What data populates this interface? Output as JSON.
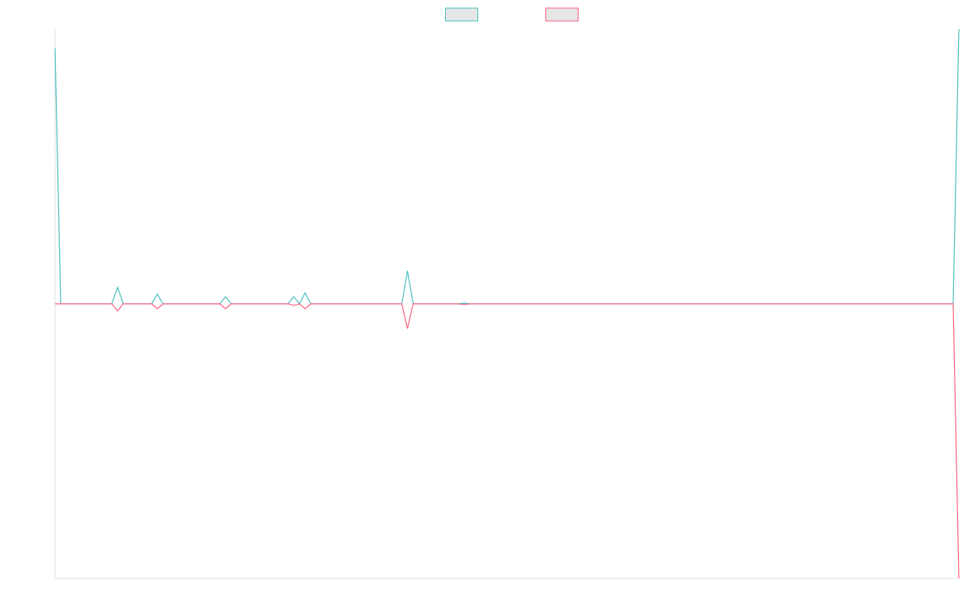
{
  "chart_data": {
    "type": "line",
    "x": [
      0,
      1,
      10,
      11,
      12,
      17,
      18,
      19,
      29,
      30,
      31,
      41,
      42,
      43,
      44,
      45,
      61,
      62,
      63,
      71,
      72,
      73,
      158,
      159
    ],
    "xlim": [
      0,
      159
    ],
    "ylim": [
      -1,
      1
    ],
    "legend": "top",
    "series": [
      {
        "color": "#4bc0c0",
        "values": [
          0.93,
          0,
          0,
          0.06,
          0,
          0,
          0.035,
          0,
          0,
          0.026,
          0,
          0,
          0.026,
          0,
          0.04,
          0,
          0,
          0.12,
          0,
          0,
          0.003,
          0,
          0,
          1
        ]
      },
      {
        "color": "#ff6384",
        "values": [
          0,
          0,
          0,
          -0.026,
          0,
          0,
          -0.018,
          0,
          0,
          -0.018,
          0,
          0,
          -0.006,
          0,
          -0.018,
          0,
          0,
          -0.09,
          0,
          0,
          -0.003,
          0,
          0,
          -1
        ]
      }
    ]
  }
}
